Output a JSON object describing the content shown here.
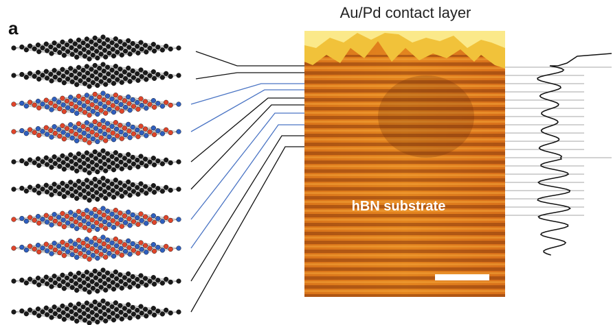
{
  "panel_label": "a",
  "top_label": "Au/Pd contact layer",
  "substrate_label": "hBN substrate"
}
